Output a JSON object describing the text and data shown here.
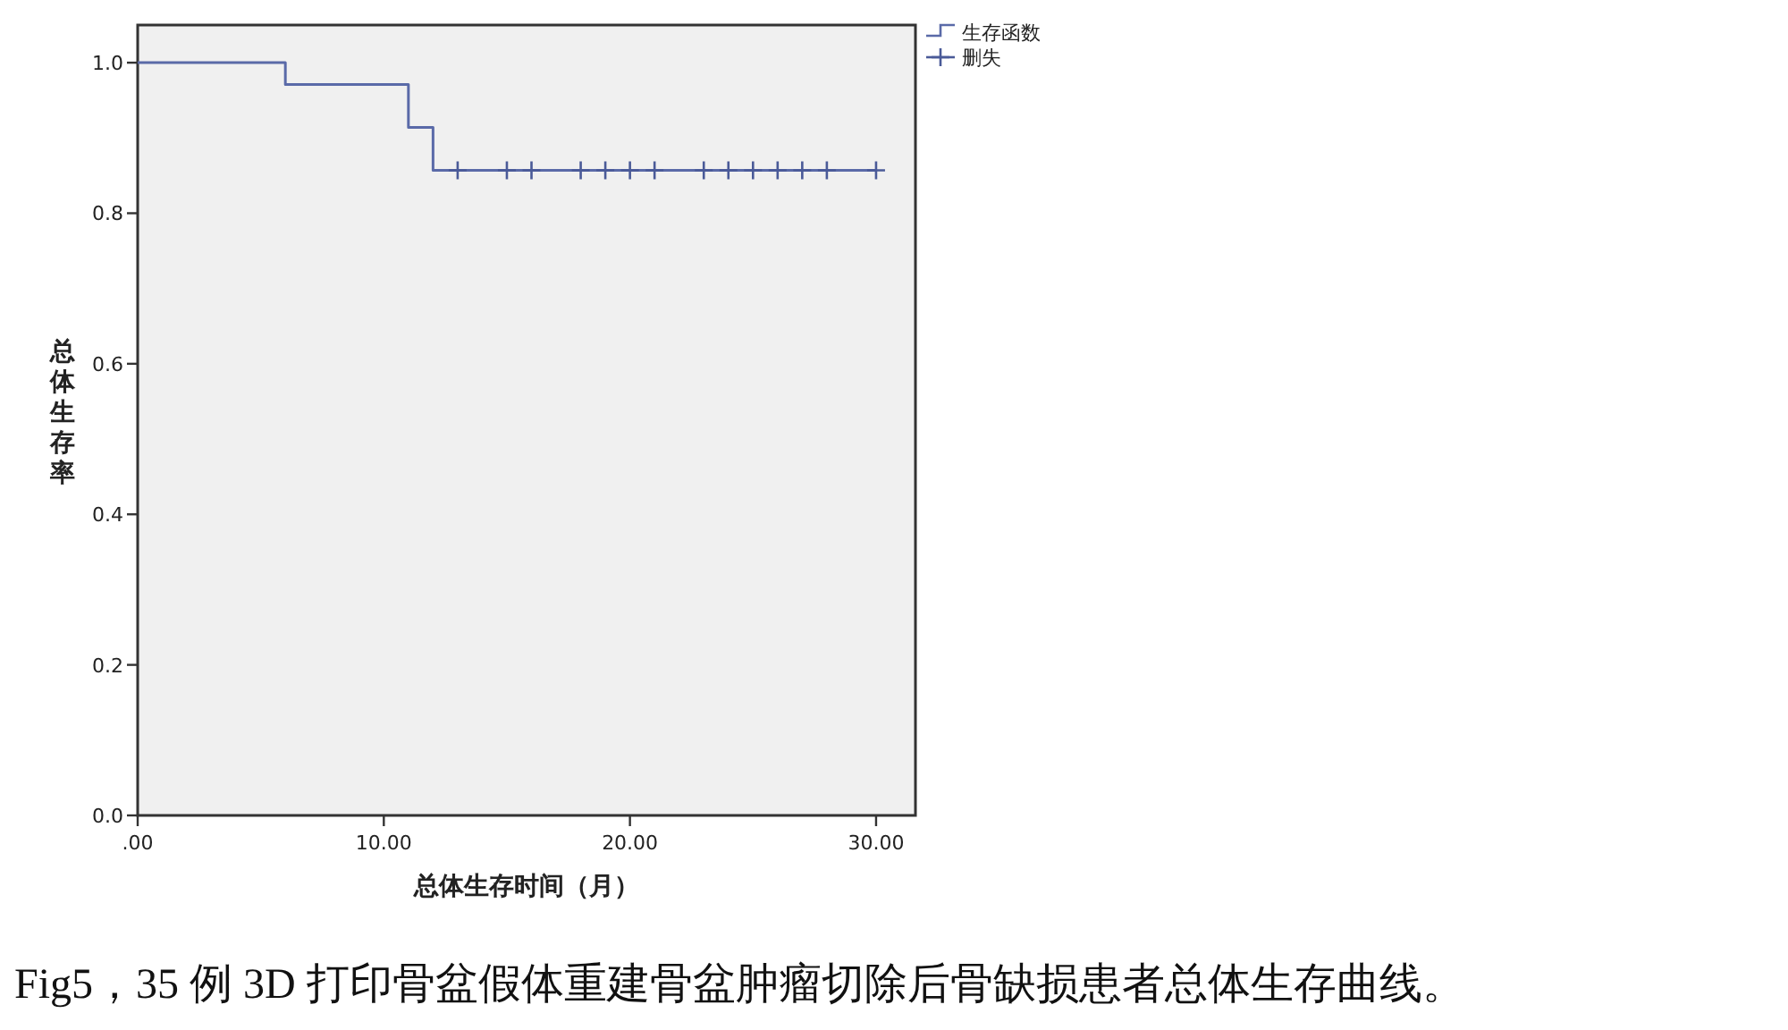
{
  "chart_data": {
    "type": "step",
    "xlabel": "总体生存时间（月）",
    "ylabel": "总体生存率",
    "annotations": [
      "Fig5，35 例 3D 打印骨盆假体重建骨盆肿瘤切除后骨缺损患者总体生存曲线。"
    ],
    "series": [
      {
        "name": "生存函数",
        "color": "#5a6aa8",
        "marker": "none",
        "x": [
          0,
          6,
          11,
          12,
          30
        ],
        "values": [
          1.0,
          0.971,
          0.914,
          0.857,
          0.857
        ]
      },
      {
        "name": "删失",
        "type": "scatter",
        "color": "#4a5a98",
        "marker": "cross",
        "x": [
          13,
          15,
          16,
          18,
          19,
          20,
          21,
          23,
          24,
          25,
          26,
          27,
          28,
          30
        ],
        "values": [
          0.857,
          0.857,
          0.857,
          0.857,
          0.857,
          0.857,
          0.857,
          0.857,
          0.857,
          0.857,
          0.857,
          0.857,
          0.857,
          0.857
        ]
      }
    ],
    "xlim": [
      0,
      31.6
    ],
    "ylim": [
      0,
      1.05
    ],
    "xticks": [
      {
        "value": 0,
        "label": ".00"
      },
      {
        "value": 10,
        "label": "10.00"
      },
      {
        "value": 20,
        "label": "20.00"
      },
      {
        "value": 30,
        "label": "30.00"
      }
    ],
    "yticks": [
      {
        "value": 0,
        "label": "0.0"
      },
      {
        "value": 0.2,
        "label": "0.2"
      },
      {
        "value": 0.4,
        "label": "0.4"
      },
      {
        "value": 0.6,
        "label": "0.6"
      },
      {
        "value": 0.8,
        "label": "0.8"
      },
      {
        "value": 1.0,
        "label": "1.0"
      }
    ],
    "grid": false,
    "legend": "top right"
  }
}
